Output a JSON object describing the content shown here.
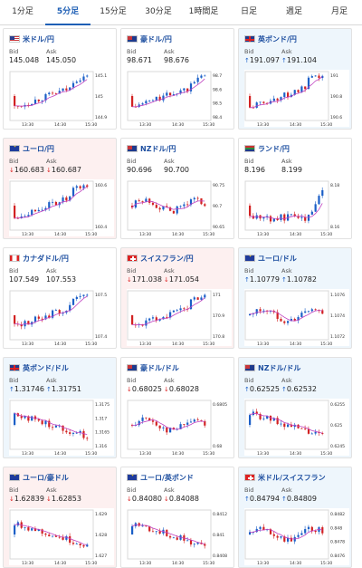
{
  "tabs": [
    {
      "label": "1分足",
      "active": false
    },
    {
      "label": "5分足",
      "active": true
    },
    {
      "label": "15分足",
      "active": false
    },
    {
      "label": "30分足",
      "active": false
    },
    {
      "label": "1時間足",
      "active": false
    },
    {
      "label": "日足",
      "active": false
    },
    {
      "label": "週足",
      "active": false
    },
    {
      "label": "月足",
      "active": false
    }
  ],
  "labels": {
    "bid": "Bid",
    "ask": "Ask"
  },
  "x_ticks": [
    "13:30",
    "14:30",
    "15:30"
  ],
  "colors": {
    "up": "#1b5fc7",
    "down": "#d22222",
    "ma": "#c040c0",
    "up_bg": "#eef6fc",
    "down_bg": "#fdf0f0"
  },
  "pairs": [
    {
      "title": "米ドル/円",
      "flag": "us",
      "bg": "neutral",
      "dir": "none",
      "bid": "145.048",
      "ask": "145.050",
      "yticks": [
        "145.1",
        "145",
        "144.9"
      ],
      "trend": "up"
    },
    {
      "title": "豪ドル/円",
      "flag": "au",
      "bg": "neutral",
      "dir": "none",
      "bid": "98.671",
      "ask": "98.676",
      "yticks": [
        "98.7",
        "98.6",
        "98.5",
        "98.4"
      ],
      "trend": "up"
    },
    {
      "title": "英ポンド/円",
      "flag": "gb",
      "bg": "up",
      "dir": "up",
      "bid": "191.097",
      "ask": "191.104",
      "yticks": [
        "191",
        "190.8",
        "190.6"
      ],
      "trend": "up"
    },
    {
      "title": "ユーロ/円",
      "flag": "eu",
      "bg": "down",
      "dir": "down",
      "bid": "160.683",
      "ask": "160.687",
      "yticks": [
        "160.6",
        "160.4"
      ],
      "trend": "up"
    },
    {
      "title": "NZドル/円",
      "flag": "nz",
      "bg": "neutral",
      "dir": "none",
      "bid": "90.696",
      "ask": "90.700",
      "yticks": [
        "90.75",
        "90.7",
        "90.65"
      ],
      "trend": "flat"
    },
    {
      "title": "ランド/円",
      "flag": "za",
      "bg": "neutral",
      "dir": "none",
      "bid": "8.196",
      "ask": "8.199",
      "yticks": [
        "8.18",
        "8.16"
      ],
      "trend": "spike"
    },
    {
      "title": "カナダドル/円",
      "flag": "ca",
      "bg": "neutral",
      "dir": "none",
      "bid": "107.549",
      "ask": "107.553",
      "yticks": [
        "107.5",
        "107.4"
      ],
      "trend": "up"
    },
    {
      "title": "スイスフラン/円",
      "flag": "ch",
      "bg": "down",
      "dir": "down",
      "bid": "171.038",
      "ask": "171.054",
      "yticks": [
        "171",
        "170.9",
        "170.8"
      ],
      "trend": "up"
    },
    {
      "title": "ユーロ/ドル",
      "flag": "eu",
      "bg": "up",
      "dir": "up",
      "bid": "1.10779",
      "ask": "1.10782",
      "yticks": [
        "1.1076",
        "1.1074",
        "1.1072"
      ],
      "trend": "flat"
    },
    {
      "title": "英ポンド/ドル",
      "flag": "gb",
      "bg": "up",
      "dir": "up",
      "bid": "1.31746",
      "ask": "1.31751",
      "yticks": [
        "1.3175",
        "1.317",
        "1.3165",
        "1.316"
      ],
      "trend": "down"
    },
    {
      "title": "豪ドル/ドル",
      "flag": "au",
      "bg": "neutral",
      "dir": "down",
      "bid": "0.68025",
      "ask": "0.68028",
      "yticks": [
        "0.6805",
        "0.68"
      ],
      "trend": "flat"
    },
    {
      "title": "NZドル/ドル",
      "flag": "nz",
      "bg": "up",
      "dir": "up",
      "bid": "0.62525",
      "ask": "0.62532",
      "yticks": [
        "0.6255",
        "0.625",
        "0.6245"
      ],
      "trend": "down"
    },
    {
      "title": "ユーロ/豪ドル",
      "flag": "eu",
      "bg": "down",
      "dir": "down",
      "bid": "1.62839",
      "ask": "1.62853",
      "yticks": [
        "1.629",
        "1.628",
        "1.627"
      ],
      "trend": "down"
    },
    {
      "title": "ユーロ/英ポンド",
      "flag": "eu",
      "bg": "neutral",
      "dir": "down",
      "bid": "0.84080",
      "ask": "0.84088",
      "yticks": [
        "0.8412",
        "0.841",
        "0.8408"
      ],
      "trend": "down"
    },
    {
      "title": "米ドル/スイスフラン",
      "flag": "ch",
      "bg": "up",
      "dir": "up",
      "bid": "0.84794",
      "ask": "0.84809",
      "yticks": [
        "0.8482",
        "0.848",
        "0.8478",
        "0.8476"
      ],
      "trend": "flat"
    }
  ]
}
